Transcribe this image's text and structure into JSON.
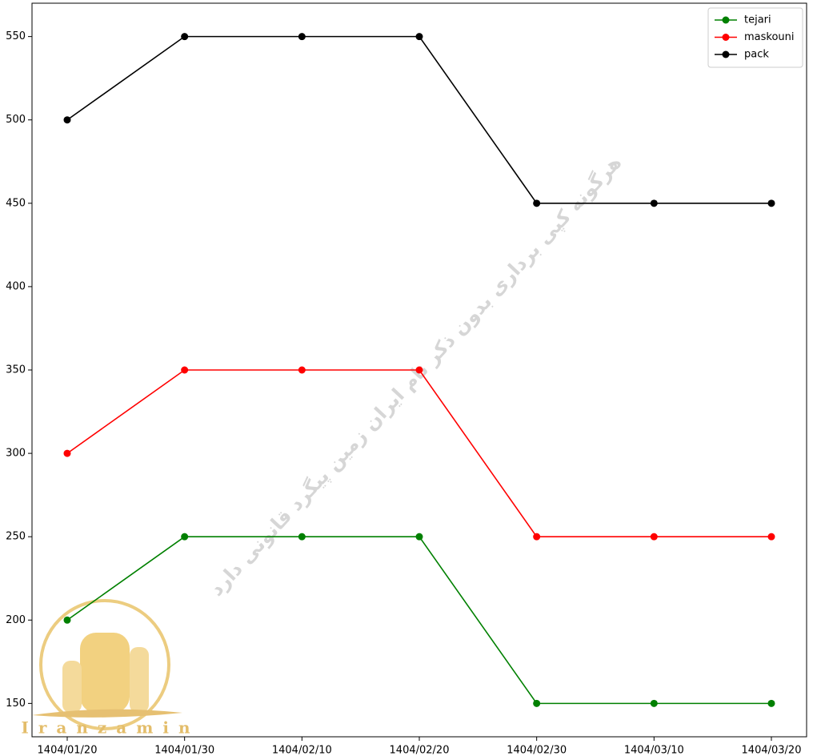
{
  "chart_data": {
    "type": "line",
    "categories": [
      "1404/01/20",
      "1404/01/30",
      "1404/02/10",
      "1404/02/20",
      "1404/02/30",
      "1404/03/10",
      "1404/03/20"
    ],
    "series": [
      {
        "name": "tejari",
        "color": "#008000",
        "values": [
          200,
          250,
          250,
          250,
          150,
          150,
          150
        ]
      },
      {
        "name": "maskouni",
        "color": "#ff0000",
        "values": [
          300,
          350,
          350,
          350,
          250,
          250,
          250
        ]
      },
      {
        "name": "pack",
        "color": "#000000",
        "values": [
          500,
          550,
          550,
          550,
          450,
          450,
          450
        ]
      }
    ],
    "ylim": [
      130,
      570
    ],
    "yticks": [
      150,
      200,
      250,
      300,
      350,
      400,
      450,
      500,
      550
    ],
    "grid": false,
    "legend": "upper right",
    "watermark": "هرگونه کپی برداری بدون ذکر نام ایران زمین پیگرد قانونی دارد",
    "logo_text": "Iranzamin"
  }
}
